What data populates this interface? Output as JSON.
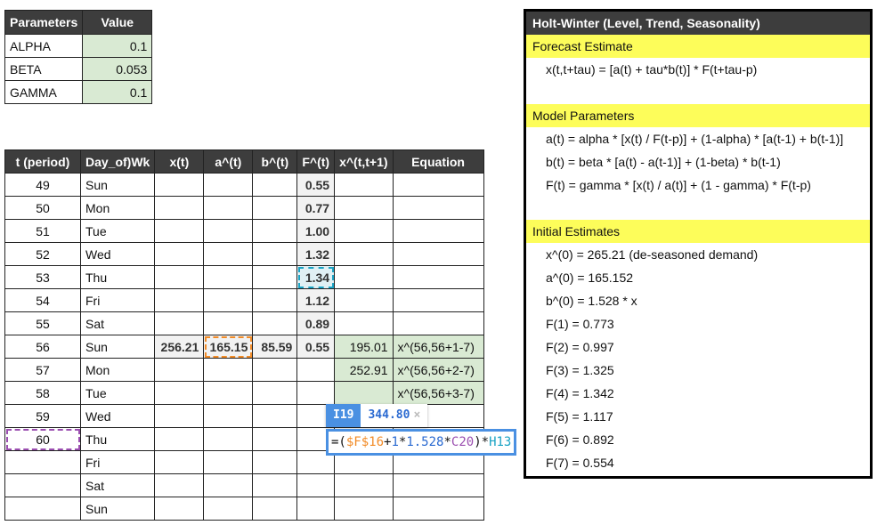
{
  "params": {
    "headers": [
      "Parameters",
      "Value"
    ],
    "rows": [
      [
        "ALPHA",
        "0.1"
      ],
      [
        "BETA",
        "0.053"
      ],
      [
        "GAMMA",
        "0.1"
      ]
    ]
  },
  "table": {
    "headers": [
      "t (period)",
      "Day_of)Wk",
      "x(t)",
      "a^(t)",
      "b^(t)",
      "F^(t)",
      "x^(t,t+1)",
      "Equation"
    ],
    "rows": [
      [
        "49",
        "Sun",
        "",
        "",
        "",
        "0.55",
        "",
        ""
      ],
      [
        "50",
        "Mon",
        "",
        "",
        "",
        "0.77",
        "",
        ""
      ],
      [
        "51",
        "Tue",
        "",
        "",
        "",
        "1.00",
        "",
        ""
      ],
      [
        "52",
        "Wed",
        "",
        "",
        "",
        "1.32",
        "",
        ""
      ],
      [
        "53",
        "Thu",
        "",
        "",
        "",
        "1.34",
        "",
        ""
      ],
      [
        "54",
        "Fri",
        "",
        "",
        "",
        "1.12",
        "",
        ""
      ],
      [
        "55",
        "Sat",
        "",
        "",
        "",
        "0.89",
        "",
        ""
      ],
      [
        "56",
        "Sun",
        "256.21",
        "165.15",
        "85.59",
        "0.55",
        "195.01",
        "x^(56,56+1-7)"
      ],
      [
        "57",
        "Mon",
        "",
        "",
        "",
        "",
        "252.91",
        "x^(56,56+2-7)"
      ],
      [
        "58",
        "Tue",
        "",
        "",
        "",
        "",
        "",
        "x^(56,56+3-7)"
      ],
      [
        "59",
        "Wed",
        "",
        "",
        "",
        "",
        "",
        ""
      ],
      [
        "60",
        "Thu",
        "",
        "",
        "",
        "",
        "",
        ""
      ],
      [
        "",
        "Fri",
        "",
        "",
        "",
        "",
        "",
        ""
      ],
      [
        "",
        "Sat",
        "",
        "",
        "",
        "",
        "",
        ""
      ],
      [
        "",
        "Sun",
        "",
        "",
        "",
        "",
        "",
        ""
      ]
    ]
  },
  "tooltip": {
    "cell_ref": "I19",
    "value": "344.80",
    "close": "×"
  },
  "formula": {
    "p1": "=(",
    "p2": "$F$16",
    "p3": "+",
    "p4": "1",
    "p5": "*",
    "p6": "1.528",
    "p7": "*",
    "p8": "C20",
    "p9": ")*",
    "p10": "H13"
  },
  "panel": {
    "title": "Holt-Winter (Level, Trend, Seasonality)",
    "forecast_heading": "Forecast Estimate",
    "forecast_formula": "x(t,t+tau) = [a(t) + tau*b(t)] * F(t+tau-p)",
    "model_heading": "Model Parameters",
    "model_lines": [
      "a(t) = alpha * [x(t) / F(t-p)] + (1-alpha) * [a(t-1) + b(t-1)]",
      "b(t) = beta * [a(t) - a(t-1)] + (1-beta) * b(t-1)",
      "F(t) = gamma * [x(t) / a(t)] + (1 - gamma) * F(t-p)"
    ],
    "initial_heading": "Initial Estimates",
    "initial_lines": [
      "x^(0) = 265.21 (de-seasoned demand)",
      "a^(0) = 165.152",
      "b^(0) = 1.528 * x",
      "F(1) = 0.773",
      "F(2) = 0.997",
      "F(3) = 1.325",
      "F(4) = 1.342",
      "F(5) = 1.117",
      "F(6) = 0.892",
      "F(7) = 0.554"
    ]
  },
  "colors": {
    "header_bg": "#3d3d3d",
    "highlight_yellow": "#fdfd5a",
    "green_cell": "#d9ead3",
    "selection_cyan": "#1aa3c4",
    "selection_orange": "#f28c28",
    "selection_purple": "#9b4fb0",
    "formula_blue": "#4a90e2"
  }
}
